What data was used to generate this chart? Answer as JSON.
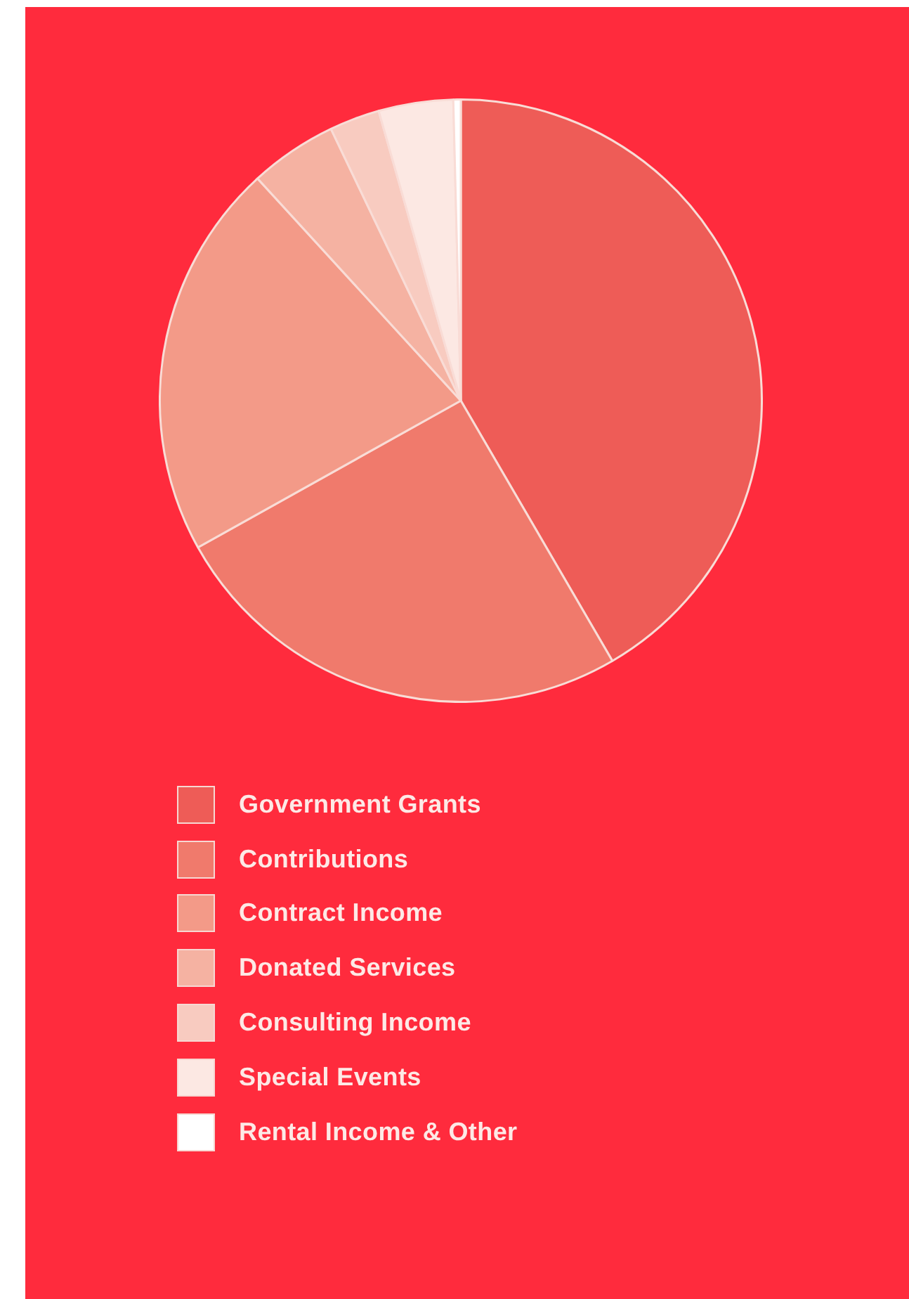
{
  "chart_data": {
    "type": "pie",
    "categories": [
      "Government Grants",
      "Contributions",
      "Contract Income",
      "Donated Services",
      "Consulting Income",
      "Special Events",
      "Rental Income & Other"
    ],
    "values": [
      41.6,
      25.3,
      21.3,
      4.7,
      2.7,
      4.0,
      0.4
    ],
    "colors": [
      "#ee5c57",
      "#f07a6c",
      "#f39a88",
      "#f5b2a2",
      "#f8cbc0",
      "#fce8e3",
      "#ffffff"
    ],
    "legend": "bottom"
  }
}
